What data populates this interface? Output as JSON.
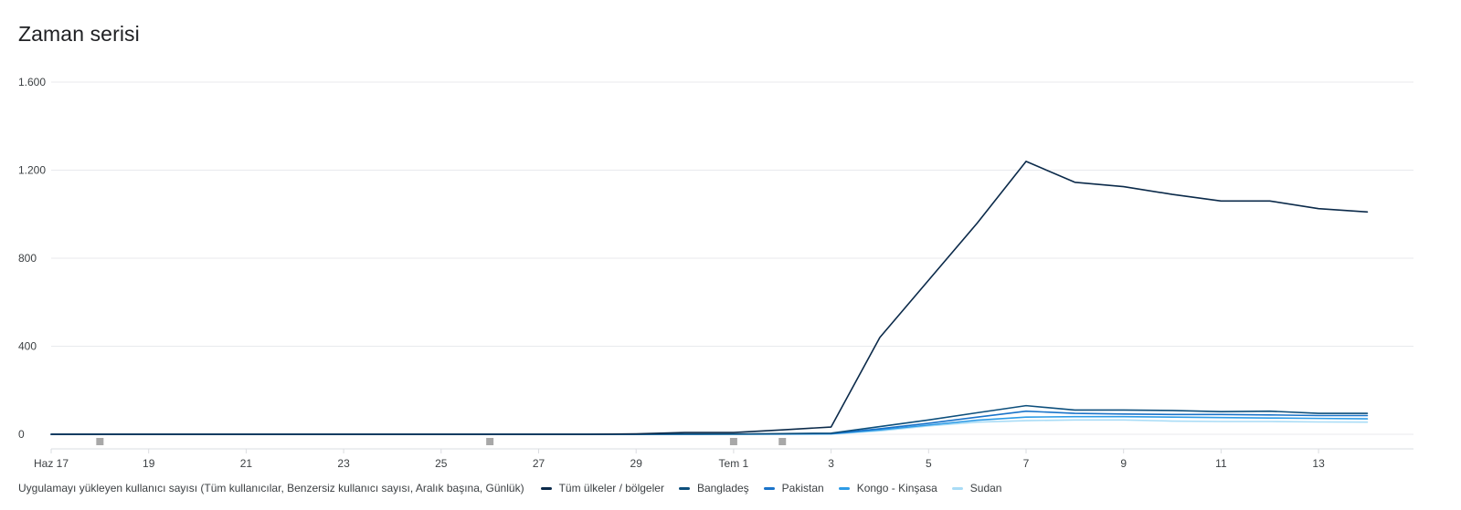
{
  "chart_data": {
    "type": "line",
    "title": "Zaman serisi",
    "x_tick_labels": [
      "Haz 17",
      "19",
      "21",
      "23",
      "25",
      "27",
      "29",
      "Tem 1",
      "3",
      "5",
      "7",
      "9",
      "11",
      "13"
    ],
    "x_tick_index": [
      0,
      2,
      4,
      6,
      8,
      10,
      12,
      14,
      16,
      18,
      20,
      22,
      24,
      26
    ],
    "y_ticks": [
      0,
      400,
      800,
      1200,
      1600
    ],
    "y_tick_labels": [
      "0",
      "400",
      "800",
      "1.200",
      "1.600"
    ],
    "ylim": [
      0,
      1600
    ],
    "grid": true,
    "legend_position": "bottom",
    "legend_description": "Uygulamayı yükleyen kullanıcı sayısı (Tüm kullanıcılar, Benzersiz kullanıcı sayısı, Aralık başına, Günlük)",
    "anomaly_marker_index": [
      1,
      9,
      14,
      15
    ],
    "dates": [
      "2024-06-17",
      "2024-06-18",
      "2024-06-19",
      "2024-06-20",
      "2024-06-21",
      "2024-06-22",
      "2024-06-23",
      "2024-06-24",
      "2024-06-25",
      "2024-06-26",
      "2024-06-27",
      "2024-06-28",
      "2024-06-29",
      "2024-06-30",
      "2024-07-01",
      "2024-07-02",
      "2024-07-03",
      "2024-07-04",
      "2024-07-05",
      "2024-07-06",
      "2024-07-07",
      "2024-07-08",
      "2024-07-09",
      "2024-07-10",
      "2024-07-11",
      "2024-07-12",
      "2024-07-13",
      "2024-07-14"
    ],
    "series": [
      {
        "name": "Tüm ülkeler / bölgeler",
        "color": "#0b2a4a",
        "values": [
          0,
          0,
          0,
          0,
          0,
          0,
          0,
          0,
          0,
          0,
          0,
          0,
          2,
          8,
          8,
          20,
          33,
          440,
          700,
          960,
          1240,
          1145,
          1125,
          1090,
          1060,
          1060,
          1025,
          1010
        ]
      },
      {
        "name": "Bangladeş",
        "color": "#0d4f7c",
        "values": [
          0,
          0,
          0,
          0,
          0,
          0,
          0,
          0,
          0,
          0,
          0,
          0,
          0,
          1,
          1,
          3,
          5,
          35,
          65,
          98,
          130,
          110,
          110,
          108,
          103,
          105,
          95,
          95
        ]
      },
      {
        "name": "Pakistan",
        "color": "#1a73c9",
        "values": [
          0,
          0,
          0,
          0,
          0,
          0,
          0,
          0,
          0,
          0,
          0,
          0,
          0,
          0,
          1,
          2,
          3,
          25,
          50,
          78,
          105,
          95,
          92,
          90,
          90,
          88,
          85,
          85
        ]
      },
      {
        "name": "Kongo - Kinşasa",
        "color": "#2d9be6",
        "values": [
          0,
          0,
          0,
          0,
          0,
          0,
          0,
          0,
          0,
          0,
          0,
          0,
          0,
          0,
          0,
          1,
          2,
          20,
          42,
          64,
          78,
          80,
          80,
          78,
          76,
          74,
          72,
          70
        ]
      },
      {
        "name": "Sudan",
        "color": "#a9dcf6",
        "values": [
          0,
          0,
          0,
          0,
          0,
          0,
          0,
          0,
          0,
          0,
          0,
          0,
          0,
          0,
          0,
          0,
          1,
          15,
          38,
          55,
          62,
          65,
          65,
          60,
          58,
          58,
          56,
          55
        ]
      }
    ]
  }
}
